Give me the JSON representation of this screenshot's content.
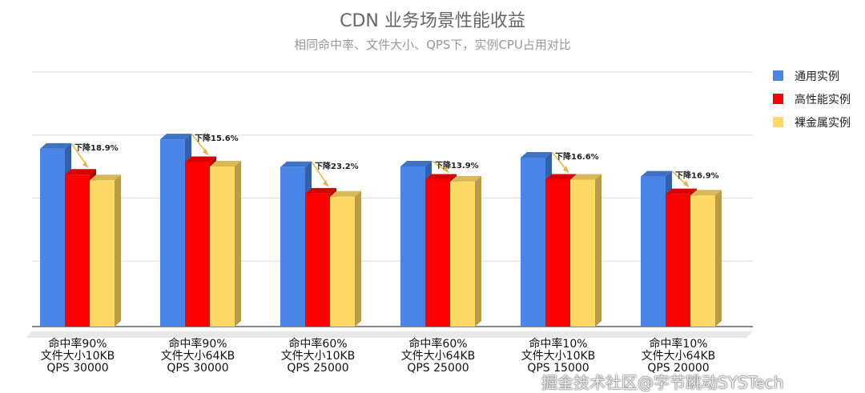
{
  "chart_data": {
    "type": "bar",
    "title": "CDN 业务场景性能收益",
    "subtitle": "相同命中率、文件大小、QPS下，实例CPU占用对比",
    "categories": [
      [
        "命中率90%",
        "文件大小10KB",
        "QPS 30000"
      ],
      [
        "命中率90%",
        "文件大小64KB",
        "QPS 30000"
      ],
      [
        "命中率60%",
        "文件大小10KB",
        "QPS 25000"
      ],
      [
        "命中率60%",
        "文件大小64KB",
        "QPS 25000"
      ],
      [
        "命中率10%",
        "文件大小10KB",
        "QPS 15000"
      ],
      [
        "命中率10%",
        "文件大小64KB",
        "QPS 20000"
      ]
    ],
    "series": [
      {
        "name": "通用实例",
        "color": "#4a86e8",
        "values": [
          2.82,
          2.97,
          2.53,
          2.54,
          2.68,
          2.38
        ]
      },
      {
        "name": "高性能实例",
        "color": "#ff0000",
        "values": [
          2.41,
          2.61,
          2.11,
          2.33,
          2.33,
          2.1
        ]
      },
      {
        "name": "裸金属实例",
        "color": "#ffd966",
        "values": [
          2.32,
          2.54,
          2.06,
          2.3,
          2.33,
          2.08
        ]
      }
    ],
    "annotations": [
      "下降18.9%",
      "下降15.6%",
      "下降23.2%",
      "下降13.9%",
      "下降16.6%",
      "下降16.9%"
    ],
    "ylim": [
      0,
      4
    ],
    "grid": true,
    "legend": "right"
  },
  "watermark": "掘金技术社区@字节跳动SYSTech"
}
